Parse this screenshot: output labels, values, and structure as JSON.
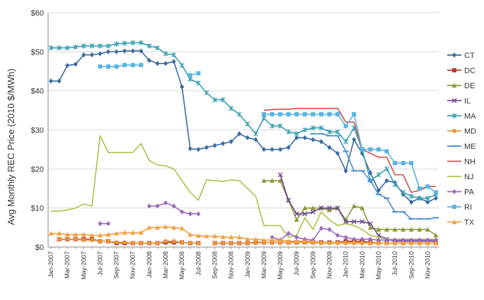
{
  "chart_data": {
    "type": "line",
    "title": "",
    "xlabel": "",
    "ylabel": "Avg Monthly REC Price (2010 $/MWh)",
    "ylim": [
      0,
      60
    ],
    "y_ticks": [
      "$0",
      "$10",
      "$20",
      "$30",
      "$40",
      "$50",
      "$60"
    ],
    "y_tick_values": [
      0,
      10,
      20,
      30,
      40,
      50,
      60
    ],
    "grid": "horizontal",
    "legend": "right",
    "x_labels": [
      "Jan-2007",
      "Mar-2007",
      "May-2007",
      "Jul-2007",
      "Sep-2007",
      "Nov-2007",
      "Jan-2008",
      "Mar-2008",
      "May-2008",
      "Jul-2008",
      "Sep-2008",
      "Nov-2008",
      "Jan-2009",
      "Mar-2009",
      "May-2009",
      "Jul-2009",
      "Sep-2009",
      "Nov-2009",
      "Jan-2010",
      "Mar-2010",
      "May-2010",
      "Jul-2010",
      "Sep-2010",
      "Nov-2010"
    ],
    "months": [
      "Jan-2007",
      "Feb-2007",
      "Mar-2007",
      "Apr-2007",
      "May-2007",
      "Jun-2007",
      "Jul-2007",
      "Aug-2007",
      "Sep-2007",
      "Oct-2007",
      "Nov-2007",
      "Dec-2007",
      "Jan-2008",
      "Feb-2008",
      "Mar-2008",
      "Apr-2008",
      "May-2008",
      "Jun-2008",
      "Jul-2008",
      "Aug-2008",
      "Sep-2008",
      "Oct-2008",
      "Nov-2008",
      "Dec-2008",
      "Jan-2009",
      "Feb-2009",
      "Mar-2009",
      "Apr-2009",
      "May-2009",
      "Jun-2009",
      "Jul-2009",
      "Aug-2009",
      "Sep-2009",
      "Oct-2009",
      "Nov-2009",
      "Dec-2009",
      "Jan-2010",
      "Feb-2010",
      "Mar-2010",
      "Apr-2010",
      "May-2010",
      "Jun-2010",
      "Jul-2010",
      "Aug-2010",
      "Sep-2010",
      "Oct-2010",
      "Nov-2010",
      "Dec-2010"
    ],
    "series": [
      {
        "name": "CT",
        "color": "#3a6aa3",
        "marker": "diamond",
        "values": [
          42.5,
          42.5,
          46.5,
          46.8,
          49.2,
          49.2,
          49.5,
          50.0,
          50.0,
          50.2,
          50.2,
          50.2,
          47.8,
          47.0,
          47.0,
          47.5,
          41.0,
          25.2,
          25.0,
          25.5,
          26.0,
          26.5,
          27.0,
          29.0,
          28.0,
          27.5,
          25.0,
          25.0,
          25.0,
          25.5,
          28.0,
          28.0,
          27.5,
          27.0,
          25.5,
          24.0,
          19.5,
          27.5,
          24.0,
          19.0,
          14.5,
          17.0,
          16.5,
          13.5,
          11.5,
          12.5,
          11.5,
          12.5
        ]
      },
      {
        "name": "DC",
        "color": "#b03a2e",
        "marker": "square",
        "values": [
          null,
          2.0,
          2.0,
          2.0,
          2.0,
          2.0,
          1.5,
          1.5,
          1.0,
          1.0,
          1.0,
          1.0,
          1.0,
          1.0,
          1.2,
          1.2,
          1.2,
          1.0,
          1.0,
          null,
          1.0,
          1.0,
          1.0,
          1.0,
          1.0,
          1.2,
          1.2,
          1.2,
          1.2,
          1.2,
          1.2,
          1.2,
          1.2,
          1.2,
          1.2,
          1.2,
          1.5,
          1.5,
          1.5,
          1.2,
          1.0,
          1.0,
          1.0,
          1.0,
          1.0,
          1.0,
          1.0,
          1.0
        ]
      },
      {
        "name": "DE",
        "color": "#8a9a3a",
        "marker": "triangle",
        "values": [
          null,
          null,
          null,
          null,
          null,
          null,
          null,
          null,
          null,
          null,
          null,
          null,
          null,
          null,
          null,
          null,
          null,
          null,
          null,
          null,
          null,
          null,
          null,
          null,
          null,
          null,
          17.0,
          17.0,
          17.0,
          12.0,
          7.0,
          10.0,
          10.0,
          10.0,
          9.5,
          10.0,
          7.0,
          10.5,
          10.0,
          5.0,
          4.5,
          4.5,
          4.5,
          4.5,
          4.5,
          4.5,
          4.5,
          3.0
        ]
      },
      {
        "name": "IL",
        "color": "#6b4a8a",
        "marker": "x",
        "values": [
          null,
          null,
          null,
          null,
          null,
          null,
          null,
          null,
          null,
          null,
          null,
          null,
          null,
          null,
          null,
          null,
          null,
          null,
          null,
          null,
          null,
          null,
          null,
          null,
          null,
          null,
          null,
          null,
          18.5,
          12.0,
          8.5,
          8.5,
          9.0,
          10.0,
          10.0,
          10.0,
          6.5,
          6.5,
          6.5,
          6.0,
          3.0,
          2.0,
          1.5,
          1.5,
          1.5,
          1.5,
          1.5,
          1.5
        ]
      },
      {
        "name": "MA",
        "color": "#3aa0b5",
        "marker": "asterisk",
        "values": [
          51.0,
          51.0,
          51.0,
          51.2,
          51.5,
          51.5,
          51.5,
          51.5,
          52.0,
          52.2,
          52.3,
          52.3,
          51.5,
          51.0,
          49.5,
          49.2,
          46.5,
          43.0,
          42.0,
          39.5,
          37.7,
          37.7,
          35.5,
          34.0,
          31.5,
          29.0,
          33.0,
          31.0,
          31.0,
          29.5,
          29.0,
          30.0,
          30.5,
          30.5,
          29.5,
          29.5,
          27.0,
          30.5,
          25.0,
          17.0,
          18.5,
          20.0,
          16.0,
          14.0,
          13.0,
          12.5,
          12.5,
          13.5
        ]
      },
      {
        "name": "MD",
        "color": "#e8943a",
        "marker": "circle",
        "values": [
          null,
          2.0,
          2.0,
          2.0,
          1.8,
          1.8,
          1.5,
          1.5,
          1.2,
          1.2,
          1.0,
          1.0,
          1.0,
          1.0,
          1.5,
          1.5,
          1.2,
          1.0,
          1.0,
          null,
          1.0,
          1.0,
          1.0,
          1.0,
          1.0,
          1.0,
          1.2,
          1.2,
          1.2,
          1.2,
          1.2,
          1.2,
          1.2,
          1.0,
          1.0,
          1.0,
          1.0,
          1.0,
          1.0,
          1.0,
          1.0,
          1.0,
          1.0,
          1.0,
          1.0,
          1.0,
          1.0,
          1.0
        ]
      },
      {
        "name": "ME",
        "color": "#4a8ed0",
        "marker": "dash",
        "values": [
          null,
          null,
          null,
          null,
          null,
          null,
          null,
          null,
          null,
          null,
          null,
          null,
          null,
          null,
          null,
          null,
          null,
          null,
          null,
          null,
          null,
          null,
          null,
          null,
          null,
          null,
          null,
          null,
          null,
          null,
          null,
          null,
          29.0,
          29.0,
          28.5,
          28.5,
          24.5,
          19.5,
          19.5,
          17.0,
          13.5,
          12.5,
          9.0,
          9.0,
          7.2,
          7.2,
          7.2,
          7.5
        ]
      },
      {
        "name": "NH",
        "color": "#d0504a",
        "marker": "none",
        "values": [
          null,
          null,
          null,
          null,
          null,
          null,
          null,
          null,
          null,
          null,
          null,
          null,
          null,
          null,
          null,
          null,
          null,
          null,
          null,
          null,
          null,
          null,
          null,
          null,
          null,
          null,
          35.0,
          35.2,
          35.3,
          35.3,
          35.5,
          35.5,
          35.5,
          35.5,
          35.5,
          35.5,
          32.0,
          32.0,
          25.0,
          24.0,
          23.0,
          23.0,
          18.5,
          18.5,
          14.0,
          14.5,
          15.5,
          15.5
        ]
      },
      {
        "name": "NJ",
        "color": "#aac24a",
        "marker": "none",
        "values": [
          9.2,
          9.2,
          9.5,
          10.0,
          11.0,
          10.5,
          28.5,
          24.2,
          24.2,
          24.2,
          24.2,
          26.5,
          22.2,
          21.0,
          20.8,
          20.0,
          17.0,
          14.0,
          12.0,
          17.2,
          17.0,
          16.8,
          17.2,
          17.0,
          15.0,
          13.0,
          5.5,
          5.5,
          5.5,
          2.5,
          3.0,
          7.5,
          4.5,
          9.0,
          7.0,
          5.5,
          6.0,
          5.5,
          4.5,
          3.0,
          2.5,
          2.0,
          2.0,
          2.0,
          2.0,
          2.0,
          2.0,
          2.0
        ]
      },
      {
        "name": "PA",
        "color": "#9a6ac0",
        "marker": "diamond",
        "values": [
          null,
          null,
          null,
          null,
          null,
          null,
          6.0,
          6.0,
          null,
          null,
          null,
          null,
          10.5,
          10.5,
          11.3,
          10.5,
          9.0,
          8.5,
          8.5,
          null,
          null,
          null,
          null,
          null,
          null,
          null,
          null,
          2.5,
          1.8,
          3.5,
          2.5,
          2.0,
          1.8,
          4.8,
          4.5,
          3.0,
          2.5,
          2.0,
          2.0,
          2.0,
          1.8,
          1.8,
          1.8,
          1.8,
          1.8,
          1.8,
          1.8,
          1.8
        ]
      },
      {
        "name": "RI",
        "color": "#5ab4e0",
        "marker": "square",
        "values": [
          null,
          null,
          null,
          null,
          null,
          null,
          46.2,
          46.2,
          46.2,
          46.6,
          46.6,
          46.6,
          null,
          null,
          null,
          null,
          null,
          44.0,
          44.5,
          null,
          null,
          null,
          null,
          null,
          null,
          null,
          34.0,
          34.0,
          34.0,
          34.0,
          34.0,
          34.0,
          34.0,
          34.0,
          34.0,
          34.0,
          31.0,
          34.0,
          25.0,
          25.0,
          25.0,
          24.5,
          21.5,
          21.5,
          21.5,
          15.0,
          15.5,
          14.0
        ]
      },
      {
        "name": "TX",
        "color": "#f0a040",
        "marker": "triangle",
        "values": [
          3.5,
          3.5,
          3.2,
          3.2,
          3.2,
          3.0,
          3.0,
          3.2,
          3.5,
          3.7,
          3.7,
          3.7,
          5.0,
          5.0,
          5.2,
          5.0,
          4.8,
          3.2,
          2.9,
          2.8,
          2.8,
          2.6,
          2.5,
          2.5,
          2.0,
          2.0,
          1.8,
          1.8,
          1.7,
          1.5,
          1.5,
          1.5,
          1.5,
          1.2,
          1.2,
          1.2,
          1.2,
          1.2,
          1.2,
          1.0,
          1.0,
          1.0,
          1.0,
          1.0,
          1.0,
          1.0,
          1.0,
          1.0
        ]
      }
    ]
  }
}
